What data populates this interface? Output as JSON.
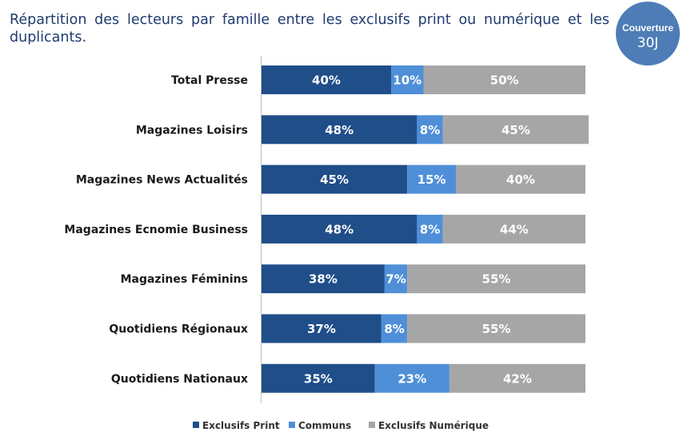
{
  "title": "Répartition des lecteurs par famille entre les exclusifs print ou numérique et les duplicants.",
  "badge": {
    "line1": "Couverture",
    "line2": "30J"
  },
  "chart_data": {
    "type": "bar",
    "orientation": "horizontal",
    "stacked": true,
    "categories": [
      "Total Presse",
      "Magazines Loisirs",
      "Magazines News Actualités",
      "Magazines Ecnomie Business",
      "Magazines Féminins",
      "Quotidiens Régionaux",
      "Quotidiens Nationaux"
    ],
    "series": [
      {
        "name": "Exclusifs Print",
        "color": "#1f4e89",
        "values": [
          40,
          48,
          45,
          48,
          38,
          37,
          35
        ]
      },
      {
        "name": "Communs",
        "color": "#4f8fd8",
        "values": [
          10,
          8,
          15,
          8,
          7,
          8,
          23
        ]
      },
      {
        "name": "Exclusifs Numérique",
        "color": "#a6a6a6",
        "values": [
          50,
          45,
          40,
          44,
          55,
          55,
          42
        ]
      }
    ],
    "data_labels": [
      [
        "40%",
        "48%",
        "45%",
        "48%",
        "38%",
        "37%",
        "35%"
      ],
      [
        "10%",
        "8%",
        "15%",
        "8%",
        "7%",
        "8%",
        "23%"
      ],
      [
        "50%",
        "45%",
        "40%",
        "44%",
        "55%",
        "55%",
        "42%"
      ]
    ],
    "xlim": [
      0,
      100
    ],
    "legend": "bottom",
    "grid": false
  }
}
